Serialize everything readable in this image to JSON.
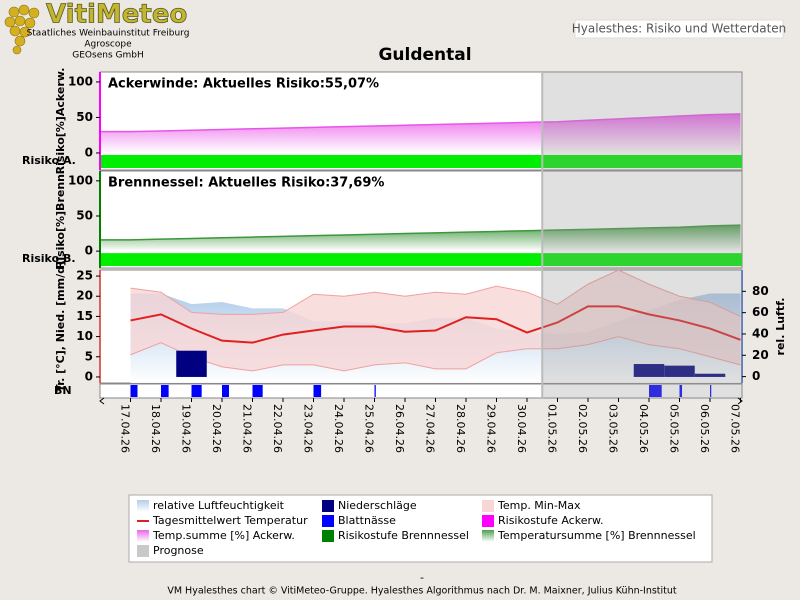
{
  "header": {
    "logo": "VitiMeteo",
    "institutions": [
      "Staatliches Weinbauinstitut Freiburg",
      "Agroscope",
      "GEOsens GmbH"
    ],
    "app_title": "Hyalesthes: Risiko und Wetterdaten"
  },
  "chart_data": {
    "type": "multi-panel",
    "title": "Guldental",
    "categories": [
      "17.04.26",
      "18.04.26",
      "19.04.26",
      "20.04.26",
      "21.04.26",
      "22.04.26",
      "23.04.26",
      "24.04.26",
      "25.04.26",
      "26.04.26",
      "27.04.26",
      "28.04.26",
      "29.04.26",
      "30.04.26",
      "01.05.26",
      "02.05.26",
      "03.05.26",
      "04.05.26",
      "05.05.26",
      "06.05.26",
      "07.05.26"
    ],
    "forecast": {
      "name": "Prognose",
      "color": "#c8c8c8",
      "start_index": 14
    },
    "panels": [
      {
        "label": "Ackerwinde:  Aktuelles Risiko:55,07%",
        "ylabel": "Risiko[%]Ackerw.",
        "risk_label": "Risiko A.",
        "ylim": [
          -24,
          114
        ],
        "yticks": [
          0,
          50,
          100
        ],
        "axis_color": "#ff00ff",
        "risk_bar_color": "#00ee00",
        "series": {
          "name": "Temp.summe [%] Ackerw.",
          "color": "#e855e8",
          "values": [
            30,
            31,
            32,
            33,
            34,
            35,
            36,
            37,
            38,
            39,
            40,
            41,
            42,
            43,
            44,
            46,
            48,
            50,
            52,
            54,
            55
          ]
        },
        "risk": {
          "name": "Risikostufe Ackerw.",
          "color": "#ff00ff"
        }
      },
      {
        "label": "Brennnessel:  Aktuelles Risiko:37,69%",
        "ylabel": "Risiko[%]Brenn.",
        "risk_label": "Risiko B.",
        "ylim": [
          -24,
          114
        ],
        "yticks": [
          0,
          50,
          100
        ],
        "axis_color": "#008000",
        "risk_bar_color": "#00ee00",
        "series": {
          "name": "Temperatursumme [%] Brennnessel",
          "color": "#3c963c",
          "values": [
            16,
            17,
            18,
            19,
            20,
            21,
            22,
            23,
            24,
            25,
            26,
            27,
            28,
            29,
            30,
            31,
            32,
            33,
            34,
            36,
            37
          ]
        },
        "risk": {
          "name": "Risikostufe Brennnessel",
          "color": "#008000"
        }
      }
    ],
    "weather": {
      "ylabel": "Tr. [°C], Nied. [mm/d]",
      "y2label": "rel. Luftf.",
      "ylim": [
        -1.5,
        26.5
      ],
      "yticks": [
        0,
        5,
        10,
        15,
        20,
        25
      ],
      "y2lim": [
        -6,
        100
      ],
      "y2ticks": [
        0,
        20,
        40,
        60,
        80
      ],
      "humidity": {
        "name": "relative Luftfeuchtigkeit",
        "color": "#a8c8e8",
        "axis": "y2",
        "values": [
          78,
          78,
          68,
          70,
          64,
          64,
          52,
          52,
          50,
          50,
          55,
          55,
          45,
          42,
          40,
          42,
          52,
          62,
          72,
          78,
          78
        ]
      },
      "precipitation": {
        "name": "Niederschläge",
        "color": "#000080",
        "values": [
          0,
          0,
          6.5,
          0,
          0,
          0,
          0,
          0,
          0,
          0,
          0,
          0,
          0,
          0,
          0,
          0,
          0,
          3.2,
          2.8,
          0.8,
          0
        ]
      },
      "temp_range": {
        "name": "Temp. Min-Max",
        "color": "#f8d6d6",
        "max": [
          22,
          21,
          16,
          15.5,
          15.5,
          16,
          20.5,
          20,
          21,
          20,
          21,
          20.5,
          22.5,
          21,
          18,
          23,
          26.5,
          23,
          20,
          18.5,
          15
        ],
        "min": [
          5.5,
          8.5,
          5,
          2.5,
          1.5,
          3,
          3,
          1.5,
          3,
          3.5,
          2,
          2,
          6,
          7,
          7,
          8,
          10,
          8,
          7,
          5,
          3
        ]
      },
      "temp_mean": {
        "name": "Tagesmittelwert Temperatur",
        "color": "#e02020",
        "values": [
          14,
          15.5,
          12,
          9,
          8.5,
          10.5,
          11.5,
          12.5,
          12.5,
          11.2,
          11.5,
          14.8,
          14.3,
          11,
          13.5,
          17.5,
          17.5,
          15.5,
          14,
          12,
          9.2
        ]
      },
      "leaf_wetness": {
        "name": "Blattnässe",
        "label": "BN",
        "color": "#0000ff",
        "values": [
          5.5,
          6,
          8,
          5.5,
          8,
          0,
          6,
          0,
          1,
          0,
          0,
          0,
          0,
          0,
          0,
          0,
          0,
          10,
          2,
          1,
          0
        ]
      }
    }
  },
  "footer": {
    "separator": "-",
    "credit": "VM Hyalesthes chart © VitiMeteo-Gruppe. Hyalesthes Algorithmus nach Dr. M. Maixner, Julius Kühn-Institut"
  }
}
